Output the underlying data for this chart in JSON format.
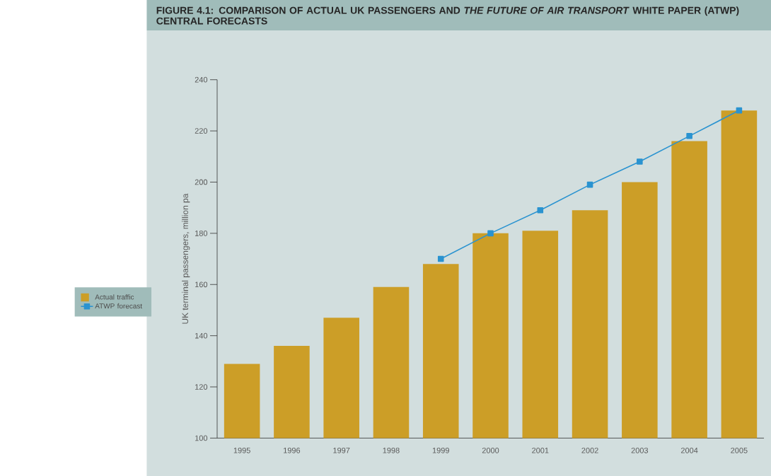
{
  "chart_data": {
    "type": "bar",
    "title": "FIGURE 4.1: COMPARISON OF ACTUAL UK PASSENGERS AND *THE FUTURE OF AIR TRANSPORT* WHITE PAPER (ATWP) CENTRAL FORECASTS",
    "ylabel": "UK terminal passengers, million pa",
    "categories": [
      "1995",
      "1996",
      "1997",
      "1998",
      "1999",
      "2000",
      "2001",
      "2002",
      "2003",
      "2004",
      "2005"
    ],
    "series": [
      {
        "name": "Actual traffic",
        "color": "#cc9e27",
        "values": [
          129,
          136,
          147,
          159,
          168,
          180,
          181,
          189,
          200,
          216,
          228
        ]
      },
      {
        "name": "ATWP forecast",
        "type": "line",
        "color": "#2a93d0",
        "marker": "square",
        "values": [
          null,
          null,
          null,
          null,
          170,
          180,
          189,
          199,
          208,
          218,
          228
        ]
      }
    ],
    "ylim": [
      100,
      240
    ],
    "yticks": [
      100,
      120,
      140,
      160,
      180,
      200,
      220,
      240
    ],
    "grid": false,
    "legend": "left"
  }
}
